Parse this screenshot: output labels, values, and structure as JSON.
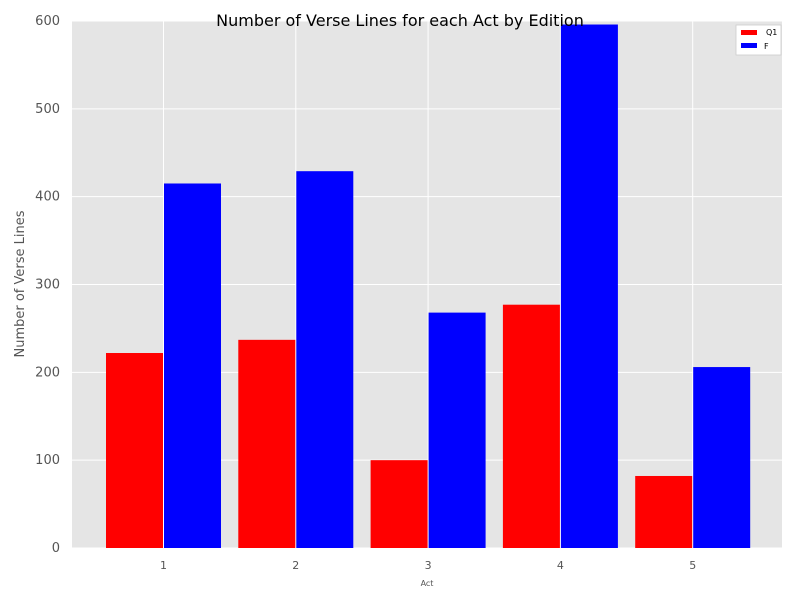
{
  "chart_data": {
    "type": "bar",
    "title": "Number of Verse Lines for each Act by Edition",
    "xlabel": "Act",
    "ylabel": "Number of Verse Lines",
    "categories": [
      "1",
      "2",
      "3",
      "4",
      "5"
    ],
    "series": [
      {
        "name": "Q1",
        "color": "#ff0000",
        "values": [
          222,
          237,
          100,
          277,
          82
        ]
      },
      {
        "name": "F",
        "color": "#0000ff",
        "values": [
          415,
          429,
          268,
          596,
          206
        ]
      }
    ],
    "ylim": [
      0,
      600
    ],
    "yticks": [
      0,
      100,
      200,
      300,
      400,
      500,
      600
    ],
    "grid": true,
    "legend_position": "top-right",
    "plot_background": "#e5e5e5"
  }
}
